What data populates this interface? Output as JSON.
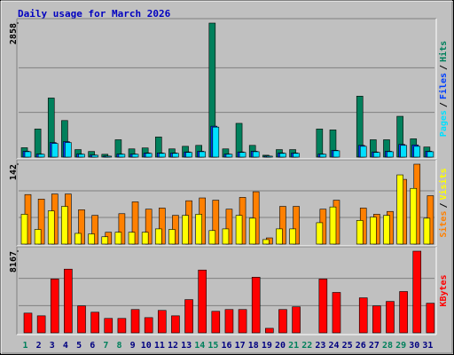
{
  "chart_data": [
    {
      "type": "bar",
      "title": "Daily usage for March 2026",
      "legend_separator": "/",
      "ylim": [
        0,
        2858
      ],
      "yticks": [
        2858
      ],
      "series": [
        {
          "name": "Hits",
          "color": "#00805c",
          "values": [
            200,
            600,
            1260,
            780,
            160,
            120,
            60,
            370,
            175,
            195,
            430,
            175,
            230,
            250,
            2858,
            175,
            720,
            250,
            40,
            160,
            160,
            0,
            600,
            580,
            0,
            1300,
            370,
            370,
            870,
            390,
            215
          ]
        },
        {
          "name": "Files",
          "color": "#0040ff",
          "values": [
            125,
            65,
            310,
            330,
            65,
            45,
            22,
            65,
            65,
            88,
            88,
            88,
            110,
            125,
            660,
            65,
            110,
            125,
            22,
            88,
            88,
            0,
            65,
            145,
            0,
            250,
            110,
            125,
            270,
            260,
            125
          ]
        },
        {
          "name": "Pages",
          "color": "#00e0ff",
          "values": [
            115,
            60,
            290,
            310,
            60,
            40,
            20,
            60,
            60,
            80,
            80,
            80,
            100,
            115,
            640,
            60,
            100,
            115,
            20,
            80,
            80,
            0,
            60,
            135,
            0,
            230,
            100,
            115,
            250,
            230,
            115
          ]
        }
      ]
    },
    {
      "type": "bar",
      "legend_separator": "/",
      "ylim": [
        0,
        142
      ],
      "yticks": [
        142
      ],
      "series": [
        {
          "name": "Visits",
          "color": "#ffff00",
          "values": [
            53,
            26,
            59,
            67,
            19,
            18,
            13,
            21,
            21,
            21,
            27,
            26,
            51,
            53,
            24,
            27,
            51,
            46,
            8,
            27,
            27,
            0,
            38,
            66,
            0,
            42,
            48,
            51,
            123,
            99,
            46
          ]
        },
        {
          "name": "Sites",
          "color": "#ff8000",
          "values": [
            88,
            80,
            89,
            89,
            61,
            51,
            21,
            54,
            75,
            62,
            64,
            51,
            77,
            82,
            78,
            62,
            83,
            93,
            11,
            67,
            67,
            0,
            62,
            78,
            0,
            64,
            53,
            58,
            115,
            142,
            86
          ]
        }
      ]
    },
    {
      "type": "bar",
      "ylim": [
        0,
        8167
      ],
      "yticks": [
        8167
      ],
      "categories": [
        "1",
        "2",
        "3",
        "4",
        "5",
        "6",
        "7",
        "8",
        "9",
        "10",
        "11",
        "12",
        "13",
        "14",
        "15",
        "16",
        "17",
        "18",
        "19",
        "20",
        "21",
        "22",
        "23",
        "24",
        "25",
        "26",
        "27",
        "28",
        "29",
        "30",
        "31"
      ],
      "label_color": "#000080",
      "highlight_color": "#00805c",
      "highlight_categories": [
        "1",
        "7",
        "8",
        "14",
        "15",
        "21",
        "22",
        "28",
        "29"
      ],
      "series": [
        {
          "name": "KBytes",
          "color": "#ff0000",
          "values": [
            1970,
            1700,
            5380,
            6370,
            2690,
            2060,
            1440,
            1440,
            2330,
            1520,
            2240,
            1700,
            3320,
            6280,
            2150,
            2330,
            2330,
            5560,
            450,
            2330,
            2600,
            0,
            5380,
            4040,
            0,
            3500,
            2690,
            3140,
            4130,
            8167,
            2960
          ]
        }
      ]
    }
  ]
}
